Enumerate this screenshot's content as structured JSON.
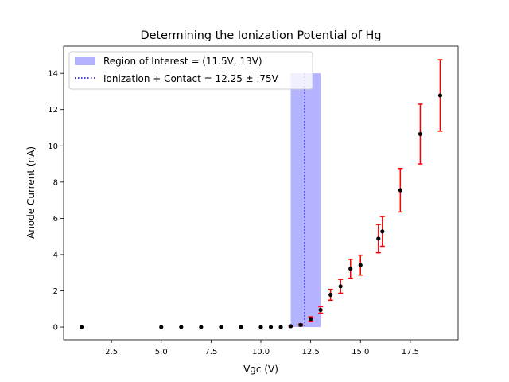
{
  "chart_data": {
    "type": "scatter",
    "title": "Determining the Ionization Potential of Hg",
    "xlabel": "Vgc (V)",
    "ylabel": "Anode Current (nA)",
    "xlim": [
      0.1,
      19.9
    ],
    "ylim": [
      -0.7,
      15.5
    ],
    "xticks": [
      2.5,
      5.0,
      7.5,
      10.0,
      12.5,
      15.0,
      17.5
    ],
    "xtick_labels": [
      "2.5",
      "5.0",
      "7.5",
      "10.0",
      "12.5",
      "15.0",
      "17.5"
    ],
    "yticks": [
      0,
      2,
      4,
      6,
      8,
      10,
      12,
      14
    ],
    "ytick_labels": [
      "0",
      "2",
      "4",
      "6",
      "8",
      "10",
      "12",
      "14"
    ],
    "grid": false,
    "legend_position": "top-left",
    "region": {
      "label": "Region of Interest = (11.5V, 13V)",
      "x_start": 11.5,
      "x_end": 13.0,
      "y_top": 14.0,
      "color": "#b3b3ff"
    },
    "vline": {
      "label": "Ionization + Contact = 12.25 ± .75V",
      "x": 12.2,
      "y_top": 14.0,
      "color": "#0000bf"
    },
    "series": [
      {
        "marker_color": "#000000",
        "error_color": "#ff0000",
        "points": [
          {
            "x": 1.0,
            "y": 0.0,
            "err": 0.0
          },
          {
            "x": 5.0,
            "y": 0.0,
            "err": 0.0
          },
          {
            "x": 6.0,
            "y": 0.0,
            "err": 0.0
          },
          {
            "x": 7.0,
            "y": 0.0,
            "err": 0.0
          },
          {
            "x": 8.0,
            "y": 0.0,
            "err": 0.0
          },
          {
            "x": 9.0,
            "y": 0.0,
            "err": 0.0
          },
          {
            "x": 10.0,
            "y": 0.0,
            "err": 0.0
          },
          {
            "x": 10.5,
            "y": 0.0,
            "err": 0.0
          },
          {
            "x": 11.0,
            "y": 0.0,
            "err": 0.0
          },
          {
            "x": 11.5,
            "y": 0.05,
            "err": 0.03
          },
          {
            "x": 12.0,
            "y": 0.12,
            "err": 0.05
          },
          {
            "x": 12.5,
            "y": 0.45,
            "err": 0.12
          },
          {
            "x": 13.0,
            "y": 0.95,
            "err": 0.18
          },
          {
            "x": 13.5,
            "y": 1.78,
            "err": 0.3
          },
          {
            "x": 14.0,
            "y": 2.25,
            "err": 0.38
          },
          {
            "x": 14.5,
            "y": 3.22,
            "err": 0.52
          },
          {
            "x": 15.0,
            "y": 3.42,
            "err": 0.55
          },
          {
            "x": 15.9,
            "y": 4.88,
            "err": 0.78
          },
          {
            "x": 16.1,
            "y": 5.28,
            "err": 0.82
          },
          {
            "x": 17.0,
            "y": 7.55,
            "err": 1.2
          },
          {
            "x": 18.0,
            "y": 10.65,
            "err": 1.65
          },
          {
            "x": 19.0,
            "y": 12.78,
            "err": 1.97
          }
        ]
      }
    ]
  }
}
